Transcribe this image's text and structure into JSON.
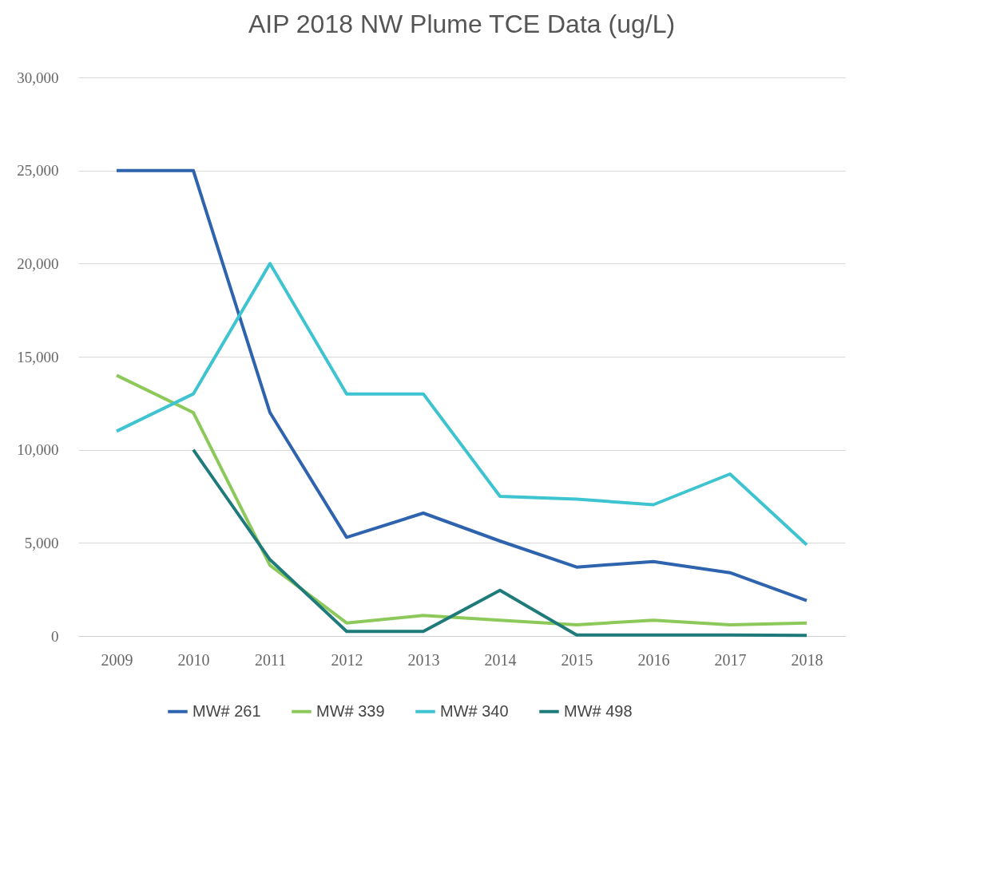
{
  "chart_data": {
    "type": "line",
    "title": "AIP 2018 NW Plume TCE Data (ug/L)",
    "categories": [
      "2009",
      "2010",
      "2011",
      "2012",
      "2013",
      "2014",
      "2015",
      "2016",
      "2017",
      "2018"
    ],
    "series": [
      {
        "name": "MW# 261",
        "color": "#2e63ad",
        "values": [
          25000,
          25000,
          12000,
          5300,
          6600,
          5100,
          3700,
          4000,
          3400,
          1900
        ]
      },
      {
        "name": "MW# 339",
        "color": "#8dc95a",
        "values": [
          14000,
          12000,
          3800,
          700,
          1100,
          850,
          600,
          850,
          600,
          700
        ]
      },
      {
        "name": "MW# 340",
        "color": "#3ec4d0",
        "values": [
          11000,
          13000,
          20000,
          13000,
          13000,
          7500,
          7350,
          7050,
          8700,
          4900
        ]
      },
      {
        "name": "MW# 498",
        "color": "#1f7a7a",
        "values": [
          null,
          10000,
          4100,
          250,
          250,
          2450,
          50,
          50,
          50,
          30
        ]
      }
    ],
    "ylim": [
      0,
      30000
    ],
    "yticks": [
      0,
      {
        "value": 5000,
        "label": "5,000"
      },
      {
        "value": 10000,
        "label": "10,000"
      },
      {
        "value": 15000,
        "label": "15,000"
      },
      {
        "value": 20000,
        "label": "20,000"
      },
      {
        "value": 25000,
        "label": "25,000"
      },
      {
        "value": 30000,
        "label": "30,000"
      }
    ],
    "grid": "y",
    "legend": "bottom",
    "marker": "none",
    "line_style": "solid"
  }
}
